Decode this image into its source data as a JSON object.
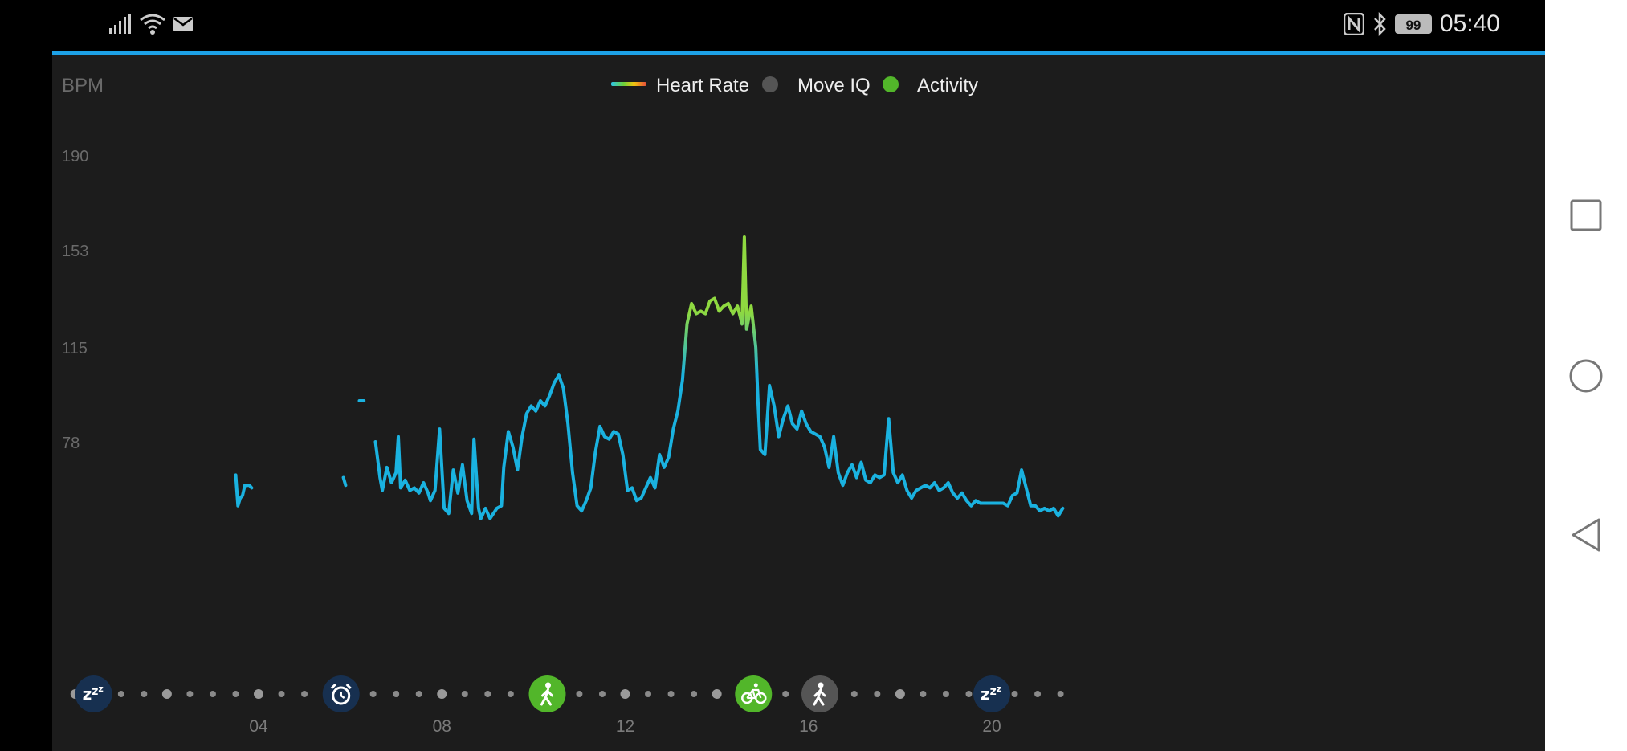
{
  "status_bar": {
    "time": "05:40",
    "battery": "99",
    "icons": [
      "signal-icon",
      "wifi-icon",
      "mail-icon",
      "nfc-icon",
      "bluetooth-icon",
      "battery-icon"
    ]
  },
  "nav_bar": {
    "icons": [
      "recents-square-icon",
      "home-circle-icon",
      "back-triangle-icon"
    ]
  },
  "colors": {
    "accent": "#1da1e6",
    "line": "#1ab2e0",
    "move_iq": "#555555",
    "activity": "#52b62a",
    "sleep_badge": "#173050"
  },
  "chart_data": {
    "type": "line",
    "ylabel": "BPM",
    "yticks": [
      78,
      115,
      153,
      190
    ],
    "xticks": [
      "04",
      "08",
      "12",
      "16",
      "20"
    ],
    "legend": [
      {
        "label": "Heart Rate",
        "type": "gradient-line"
      },
      {
        "label": "Move IQ",
        "type": "dot",
        "color": "#555555"
      },
      {
        "label": "Activity",
        "type": "dot",
        "color": "#52b62a"
      }
    ],
    "event_markers": [
      {
        "hour": 0.4,
        "icon": "sleep-zzz-icon",
        "kind": "sleep"
      },
      {
        "hour": 5.8,
        "icon": "alarm-clock-icon",
        "kind": "wake"
      },
      {
        "hour": 10.3,
        "icon": "walking-person-icon",
        "kind": "activity"
      },
      {
        "hour": 14.8,
        "icon": "bicycle-icon",
        "kind": "activity"
      },
      {
        "hour": 16.25,
        "icon": "walking-person-icon",
        "kind": "move-iq"
      },
      {
        "hour": 20.0,
        "icon": "sleep-zzz-icon",
        "kind": "sleep"
      }
    ],
    "series": [
      {
        "segments": [
          [
            [
              3.5,
              65
            ],
            [
              3.55,
              53
            ],
            [
              3.6,
              56
            ],
            [
              3.65,
              57
            ],
            [
              3.7,
              61
            ],
            [
              3.8,
              61
            ],
            [
              3.85,
              60
            ]
          ],
          [
            [
              5.85,
              64
            ],
            [
              5.9,
              61
            ]
          ],
          [
            [
              6.2,
              94
            ],
            [
              6.3,
              94
            ]
          ],
          [
            [
              6.55,
              78
            ],
            [
              6.65,
              64
            ],
            [
              6.7,
              59
            ],
            [
              6.8,
              68
            ],
            [
              6.9,
              62
            ],
            [
              7.0,
              66
            ],
            [
              7.05,
              80
            ],
            [
              7.1,
              60
            ],
            [
              7.2,
              63
            ],
            [
              7.3,
              59
            ],
            [
              7.4,
              60
            ],
            [
              7.5,
              58
            ],
            [
              7.6,
              62
            ],
            [
              7.7,
              58
            ],
            [
              7.75,
              55
            ],
            [
              7.85,
              59
            ],
            [
              7.95,
              83
            ],
            [
              8.05,
              52
            ],
            [
              8.15,
              50
            ],
            [
              8.25,
              67
            ],
            [
              8.35,
              58
            ],
            [
              8.45,
              69
            ],
            [
              8.55,
              55
            ],
            [
              8.65,
              50
            ],
            [
              8.7,
              79
            ],
            [
              8.8,
              52
            ],
            [
              8.85,
              48
            ],
            [
              8.95,
              52
            ],
            [
              9.05,
              48
            ],
            [
              9.2,
              52
            ],
            [
              9.3,
              53
            ],
            [
              9.35,
              68
            ],
            [
              9.45,
              82
            ],
            [
              9.55,
              76
            ],
            [
              9.65,
              67
            ],
            [
              9.75,
              80
            ],
            [
              9.85,
              89
            ],
            [
              9.95,
              92
            ],
            [
              10.05,
              90
            ],
            [
              10.15,
              94
            ],
            [
              10.25,
              92
            ],
            [
              10.35,
              96
            ],
            [
              10.45,
              101
            ],
            [
              10.55,
              104
            ],
            [
              10.65,
              99
            ],
            [
              10.75,
              85
            ],
            [
              10.85,
              66
            ],
            [
              10.95,
              53
            ],
            [
              11.05,
              51
            ],
            [
              11.15,
              55
            ],
            [
              11.25,
              60
            ],
            [
              11.35,
              74
            ],
            [
              11.45,
              84
            ],
            [
              11.55,
              80
            ],
            [
              11.65,
              79
            ],
            [
              11.75,
              82
            ],
            [
              11.85,
              81
            ],
            [
              11.95,
              73
            ],
            [
              12.05,
              59
            ],
            [
              12.15,
              60
            ],
            [
              12.25,
              55
            ],
            [
              12.35,
              56
            ],
            [
              12.45,
              60
            ],
            [
              12.55,
              64
            ],
            [
              12.65,
              60
            ],
            [
              12.75,
              73
            ],
            [
              12.85,
              68
            ],
            [
              12.95,
              72
            ],
            [
              13.05,
              83
            ],
            [
              13.15,
              90
            ],
            [
              13.25,
              102
            ],
            [
              13.35,
              124
            ],
            [
              13.45,
              132
            ],
            [
              13.55,
              128
            ],
            [
              13.65,
              129
            ],
            [
              13.75,
              128
            ],
            [
              13.85,
              133
            ],
            [
              13.95,
              134
            ],
            [
              14.05,
              129
            ],
            [
              14.15,
              131
            ],
            [
              14.25,
              132
            ],
            [
              14.35,
              128
            ],
            [
              14.45,
              131
            ],
            [
              14.55,
              124
            ],
            [
              14.6,
              158
            ],
            [
              14.65,
              122
            ],
            [
              14.75,
              131
            ],
            [
              14.85,
              115
            ],
            [
              14.9,
              93
            ],
            [
              14.95,
              75
            ],
            [
              15.05,
              73
            ],
            [
              15.15,
              100
            ],
            [
              15.25,
              92
            ],
            [
              15.35,
              80
            ],
            [
              15.45,
              87
            ],
            [
              15.55,
              92
            ],
            [
              15.65,
              85
            ],
            [
              15.75,
              83
            ],
            [
              15.85,
              90
            ],
            [
              15.95,
              85
            ],
            [
              16.05,
              82
            ],
            [
              16.15,
              81
            ],
            [
              16.25,
              80
            ],
            [
              16.35,
              76
            ],
            [
              16.45,
              68
            ],
            [
              16.55,
              80
            ],
            [
              16.65,
              66
            ],
            [
              16.75,
              61
            ],
            [
              16.85,
              66
            ],
            [
              16.95,
              69
            ],
            [
              17.05,
              64
            ],
            [
              17.15,
              70
            ],
            [
              17.25,
              63
            ],
            [
              17.35,
              62
            ],
            [
              17.45,
              65
            ],
            [
              17.55,
              64
            ],
            [
              17.65,
              65
            ],
            [
              17.75,
              87
            ],
            [
              17.85,
              66
            ],
            [
              17.95,
              62
            ],
            [
              18.05,
              65
            ],
            [
              18.15,
              59
            ],
            [
              18.25,
              56
            ],
            [
              18.35,
              59
            ],
            [
              18.45,
              60
            ],
            [
              18.55,
              61
            ],
            [
              18.65,
              60
            ],
            [
              18.75,
              62
            ],
            [
              18.85,
              59
            ],
            [
              18.95,
              60
            ],
            [
              19.05,
              62
            ],
            [
              19.15,
              58
            ],
            [
              19.25,
              56
            ],
            [
              19.35,
              58
            ],
            [
              19.45,
              55
            ],
            [
              19.55,
              53
            ],
            [
              19.65,
              55
            ],
            [
              19.75,
              54
            ],
            [
              19.85,
              54
            ],
            [
              19.95,
              54
            ],
            [
              20.05,
              54
            ],
            [
              20.15,
              54
            ],
            [
              20.25,
              54
            ],
            [
              20.35,
              53
            ],
            [
              20.45,
              57
            ],
            [
              20.55,
              58
            ],
            [
              20.65,
              67
            ],
            [
              20.75,
              60
            ],
            [
              20.85,
              53
            ],
            [
              20.95,
              53
            ],
            [
              21.05,
              51
            ],
            [
              21.15,
              52
            ],
            [
              21.25,
              51
            ],
            [
              21.35,
              52
            ],
            [
              21.45,
              49
            ],
            [
              21.55,
              52
            ]
          ]
        ]
      }
    ],
    "xlim": [
      0,
      22
    ],
    "ylim": [
      35,
      223
    ]
  }
}
